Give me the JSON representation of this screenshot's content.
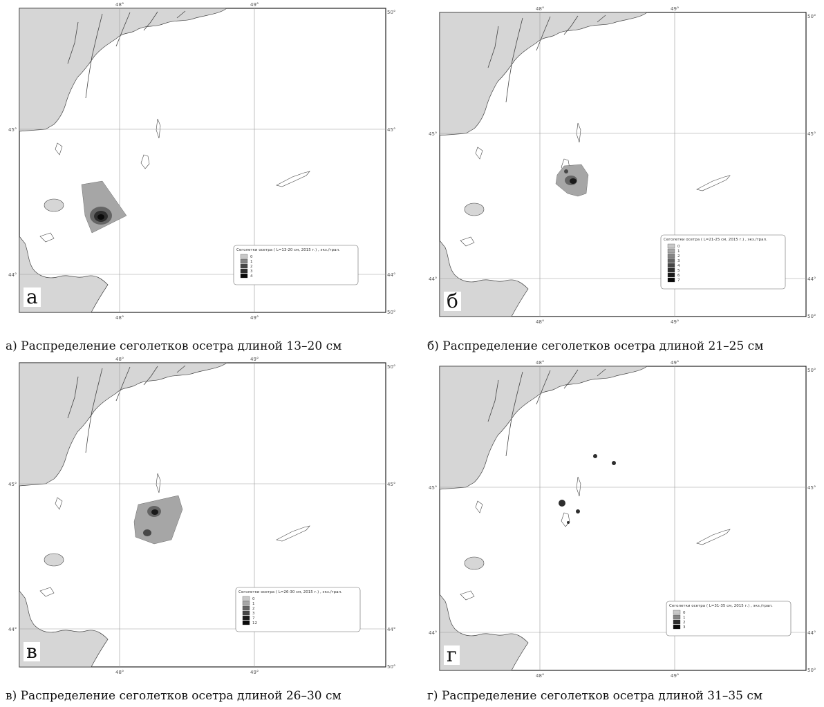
{
  "panels": [
    {
      "id": "a",
      "letter": "а",
      "caption": "а) Распределение сеголетков осетра длиной 13–20 см",
      "legend_title": "Сеголетки осетра  ( L=13-20 см, 2015 г.) , экз./трал.",
      "legend_values": [
        "0",
        "1",
        "2",
        "3",
        "4"
      ],
      "lon_labels": [
        "48°",
        "49°",
        "50°"
      ],
      "lat_labels": [
        "45°",
        "44°"
      ]
    },
    {
      "id": "b",
      "letter": "б",
      "caption": "б) Распределение сеголетков осетра длиной 21–25 см",
      "legend_title": "Сеголетки осетра  ( L=21-25 см, 2015 г.) , экз./трал.",
      "legend_values": [
        "0",
        "1",
        "2",
        "3",
        "4",
        "5",
        "6",
        "7"
      ],
      "lon_labels": [
        "48°",
        "49°",
        "50°"
      ],
      "lat_labels": [
        "45°",
        "44°"
      ]
    },
    {
      "id": "c",
      "letter": "в",
      "caption": "в) Распределение сеголетков осетра длиной 26–30 см",
      "legend_title": "Сеголетки осетра  ( L=26-30 см, 2015 г.) , экз./трал.",
      "legend_values": [
        "0",
        "1",
        "2",
        "3",
        "7",
        "12"
      ],
      "lon_labels": [
        "48°",
        "49°",
        "50°"
      ],
      "lat_labels": [
        "45°",
        "44°"
      ]
    },
    {
      "id": "d",
      "letter": "г",
      "caption": "г) Распределение сеголетков осетра длиной 31–35 см",
      "legend_title": "Сеголетки осетра  ( L=31-35 см, 2015 г.) , экз./трал.",
      "legend_values": [
        "0",
        "1",
        "2",
        "3"
      ],
      "lon_labels": [
        "48°",
        "49°",
        "50°"
      ],
      "lat_labels": [
        "45°",
        "44°"
      ]
    }
  ],
  "colors": {
    "land": "#d6d6d6",
    "coast": "#444444",
    "grid": "#999999",
    "scale": [
      "#c8c8c8",
      "#a6a6a6",
      "#858585",
      "#646464",
      "#474747",
      "#2e2e2e",
      "#1a1a1a",
      "#0a0a0a"
    ]
  }
}
